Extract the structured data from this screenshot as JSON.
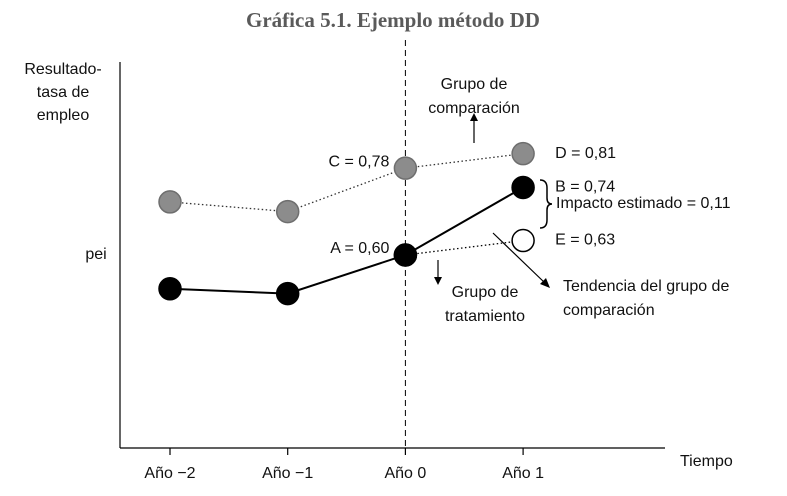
{
  "chart_data": {
    "type": "line",
    "title": "Gráfica 5.1. Ejemplo método DD",
    "y_label": [
      "Resultado-",
      "tasa de",
      "empleo"
    ],
    "x_label": "Tiempo",
    "categories": [
      "Año −2",
      "Año −1",
      "Año 0",
      "Año 1"
    ],
    "ylim": [
      0.2,
      1.0
    ],
    "grid": false,
    "reference_line_category": 2,
    "series": [
      {
        "name": [
          "Grupo de",
          "comparación"
        ],
        "color": "#8c8c8c",
        "line_color": "#333333",
        "line_style": "dotted",
        "values": [
          0.71,
          0.69,
          0.78,
          0.81
        ],
        "value_labels": [
          null,
          null,
          "C = 0,78",
          "D = 0,81"
        ]
      },
      {
        "name": [
          "Tendencia del grupo de",
          "comparación"
        ],
        "color": "#000000",
        "marker_fill": "#ffffff",
        "line_color": "#000000",
        "line_style": "dotted",
        "values": [
          null,
          null,
          0.6,
          0.63
        ],
        "value_labels": [
          null,
          null,
          null,
          "E = 0,63"
        ]
      },
      {
        "name": [
          "Grupo de",
          "tratamiento"
        ],
        "color": "#000000",
        "line_color": "#000000",
        "line_style": "solid",
        "values": [
          0.53,
          0.52,
          0.6,
          0.74
        ],
        "value_labels": [
          null,
          null,
          "A = 0,60",
          "B = 0,74"
        ]
      }
    ],
    "annotations": [
      {
        "text": "pei"
      },
      {
        "text": "Impacto estimado = 0,11"
      }
    ]
  }
}
